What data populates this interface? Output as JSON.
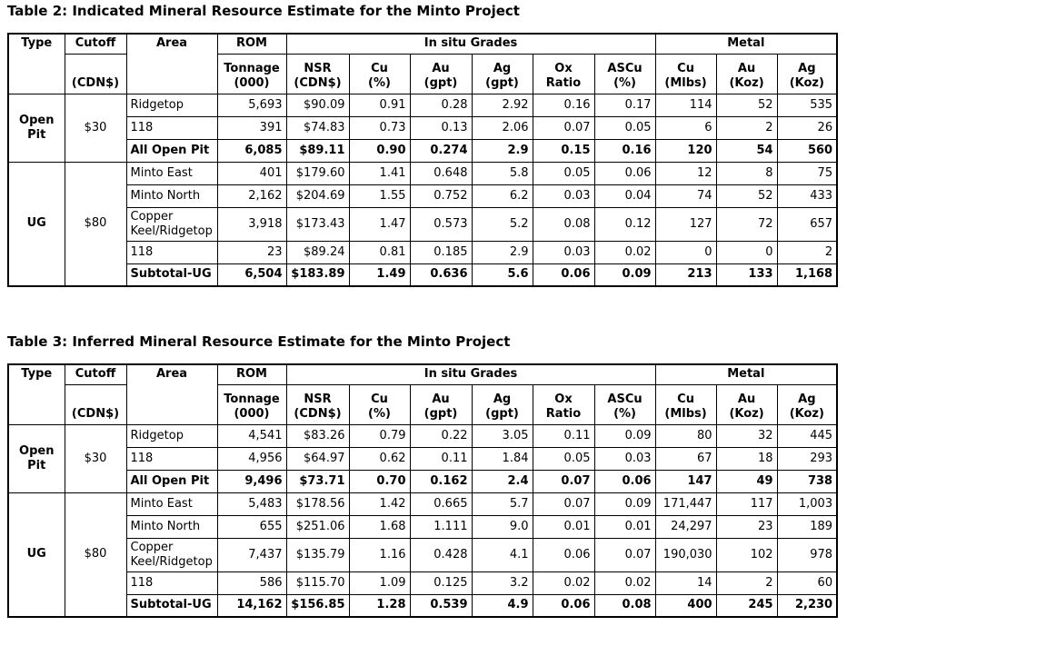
{
  "page": {
    "background": "#ffffff",
    "text_color": "#000000",
    "border_color": "#000000"
  },
  "header": {
    "type": "Type",
    "cutoff": "Cutoff",
    "cutoff_unit": "(CDN$)",
    "area": "Area",
    "rom": "ROM",
    "rom_sub": "Tonnage\n(000)",
    "insitu_group": "In situ Grades",
    "metal_group": "Metal",
    "sub_cols": [
      "NSR\n(CDN$)",
      "Cu\n(%)",
      "Au\n(gpt)",
      "Ag\n(gpt)",
      "Ox\nRatio",
      "ASCu\n(%)",
      "Cu\n(Mlbs)",
      "Au\n(Koz)",
      "Ag\n(Koz)"
    ]
  },
  "tables": [
    {
      "title": "Table 2: Indicated Mineral Resource Estimate for the Minto Project",
      "groups": [
        {
          "type": "Open Pit",
          "cutoff": "$30",
          "rows": [
            {
              "area": "Ridgetop",
              "bold": false,
              "values": [
                "5,693",
                "$90.09",
                "0.91",
                "0.28",
                "2.92",
                "0.16",
                "0.17",
                "114",
                "52",
                "535"
              ]
            },
            {
              "area": "118",
              "bold": false,
              "values": [
                "391",
                "$74.83",
                "0.73",
                "0.13",
                "2.06",
                "0.07",
                "0.05",
                "6",
                "2",
                "26"
              ]
            },
            {
              "area": "All Open Pit",
              "bold": true,
              "values": [
                "6,085",
                "$89.11",
                "0.90",
                "0.274",
                "2.9",
                "0.15",
                "0.16",
                "120",
                "54",
                "560"
              ]
            }
          ]
        },
        {
          "type": "UG",
          "cutoff": "$80",
          "rows": [
            {
              "area": "Minto East",
              "bold": false,
              "values": [
                "401",
                "$179.60",
                "1.41",
                "0.648",
                "5.8",
                "0.05",
                "0.06",
                "12",
                "8",
                "75"
              ]
            },
            {
              "area": "Minto North",
              "bold": false,
              "values": [
                "2,162",
                "$204.69",
                "1.55",
                "0.752",
                "6.2",
                "0.03",
                "0.04",
                "74",
                "52",
                "433"
              ]
            },
            {
              "area": "Copper Keel/Ridgetop",
              "bold": false,
              "values": [
                "3,918",
                "$173.43",
                "1.47",
                "0.573",
                "5.2",
                "0.08",
                "0.12",
                "127",
                "72",
                "657"
              ]
            },
            {
              "area": "118",
              "bold": false,
              "values": [
                "23",
                "$89.24",
                "0.81",
                "0.185",
                "2.9",
                "0.03",
                "0.02",
                "0",
                "0",
                "2"
              ]
            },
            {
              "area": "Subtotal-UG",
              "bold": true,
              "values": [
                "6,504",
                "$183.89",
                "1.49",
                "0.636",
                "5.6",
                "0.06",
                "0.09",
                "213",
                "133",
                "1,168"
              ]
            }
          ]
        }
      ]
    },
    {
      "title": "Table 3: Inferred Mineral Resource Estimate for the Minto Project",
      "groups": [
        {
          "type": "Open Pit",
          "cutoff": "$30",
          "rows": [
            {
              "area": "Ridgetop",
              "bold": false,
              "values": [
                "4,541",
                "$83.26",
                "0.79",
                "0.22",
                "3.05",
                "0.11",
                "0.09",
                "80",
                "32",
                "445"
              ]
            },
            {
              "area": "118",
              "bold": false,
              "values": [
                "4,956",
                "$64.97",
                "0.62",
                "0.11",
                "1.84",
                "0.05",
                "0.03",
                "67",
                "18",
                "293"
              ]
            },
            {
              "area": "All Open Pit",
              "bold": true,
              "values": [
                "9,496",
                "$73.71",
                "0.70",
                "0.162",
                "2.4",
                "0.07",
                "0.06",
                "147",
                "49",
                "738"
              ]
            }
          ]
        },
        {
          "type": "UG",
          "cutoff": "$80",
          "rows": [
            {
              "area": "Minto East",
              "bold": false,
              "values": [
                "5,483",
                "$178.56",
                "1.42",
                "0.665",
                "5.7",
                "0.07",
                "0.09",
                "171,447",
                "117",
                "1,003"
              ]
            },
            {
              "area": "Minto North",
              "bold": false,
              "values": [
                "655",
                "$251.06",
                "1.68",
                "1.111",
                "9.0",
                "0.01",
                "0.01",
                "24,297",
                "23",
                "189"
              ]
            },
            {
              "area": "Copper Keel/Ridgetop",
              "bold": false,
              "values": [
                "7,437",
                "$135.79",
                "1.16",
                "0.428",
                "4.1",
                "0.06",
                "0.07",
                "190,030",
                "102",
                "978"
              ]
            },
            {
              "area": "118",
              "bold": false,
              "values": [
                "586",
                "$115.70",
                "1.09",
                "0.125",
                "3.2",
                "0.02",
                "0.02",
                "14",
                "2",
                "60"
              ]
            },
            {
              "area": "Subtotal-UG",
              "bold": true,
              "values": [
                "14,162",
                "$156.85",
                "1.28",
                "0.539",
                "4.9",
                "0.06",
                "0.08",
                "400",
                "245",
                "2,230"
              ]
            }
          ]
        }
      ]
    }
  ]
}
